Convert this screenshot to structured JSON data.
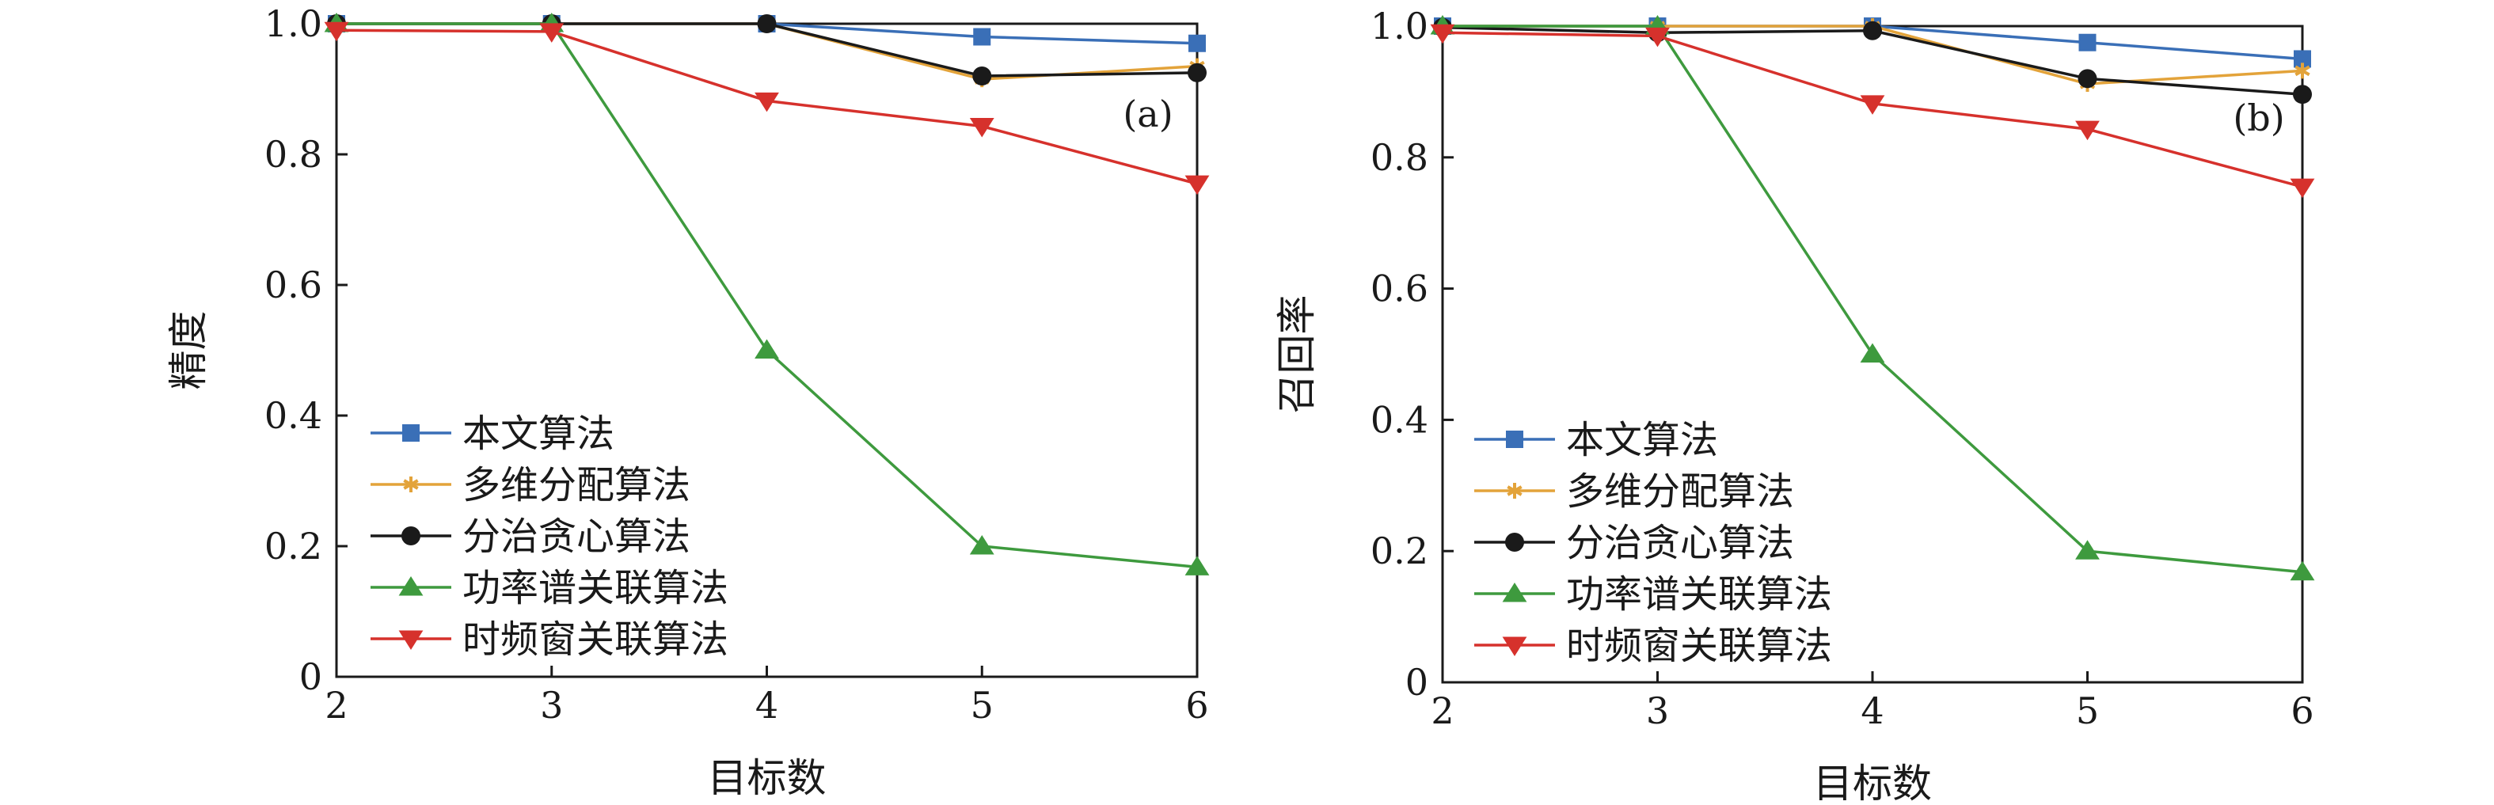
{
  "chart_data": [
    {
      "type": "line",
      "panel_label": "(a)",
      "xlabel": "目标数",
      "ylabel": "精度",
      "x": [
        2,
        3,
        4,
        5,
        6
      ],
      "xlim": [
        2,
        6
      ],
      "ylim": [
        0,
        1.0
      ],
      "x_ticks": [
        "2",
        "3",
        "4",
        "5",
        "6"
      ],
      "y_ticks": [
        "0",
        "0.2",
        "0.4",
        "0.6",
        "0.8",
        "1.0"
      ],
      "grid": false,
      "legend_position": "bottom-left",
      "series": [
        {
          "name": "本文算法",
          "values": [
            1.0,
            1.0,
            1.0,
            0.98,
            0.97
          ],
          "color": "#3a6fb7",
          "marker": "square"
        },
        {
          "name": "多维分配算法",
          "values": [
            1.0,
            1.0,
            1.0,
            0.915,
            0.935
          ],
          "color": "#e3a33a",
          "marker": "star"
        },
        {
          "name": "分治贪心算法",
          "values": [
            1.0,
            1.0,
            1.0,
            0.92,
            0.925
          ],
          "color": "#1a1a1a",
          "marker": "circle"
        },
        {
          "name": "功率谱关联算法",
          "values": [
            1.0,
            1.0,
            0.5,
            0.2,
            0.168
          ],
          "color": "#3e9a3e",
          "marker": "triangle-up"
        },
        {
          "name": "时频窗关联算法",
          "values": [
            0.99,
            0.988,
            0.882,
            0.843,
            0.755
          ],
          "color": "#d6312c",
          "marker": "triangle-down"
        }
      ]
    },
    {
      "type": "line",
      "panel_label": "(b)",
      "xlabel": "目标数",
      "ylabel": "召回率",
      "x": [
        2,
        3,
        4,
        5,
        6
      ],
      "xlim": [
        2,
        6
      ],
      "ylim": [
        0,
        1.0
      ],
      "x_ticks": [
        "2",
        "3",
        "4",
        "5",
        "6"
      ],
      "y_ticks": [
        "0",
        "0.2",
        "0.4",
        "0.6",
        "0.8",
        "1.0"
      ],
      "grid": false,
      "legend_position": "bottom-left",
      "series": [
        {
          "name": "本文算法",
          "values": [
            1.0,
            1.0,
            1.0,
            0.975,
            0.95
          ],
          "color": "#3a6fb7",
          "marker": "square"
        },
        {
          "name": "多维分配算法",
          "values": [
            1.0,
            1.0,
            1.0,
            0.912,
            0.932
          ],
          "color": "#e3a33a",
          "marker": "star"
        },
        {
          "name": "分治贪心算法",
          "values": [
            0.998,
            0.99,
            0.993,
            0.92,
            0.896
          ],
          "color": "#1a1a1a",
          "marker": "circle"
        },
        {
          "name": "功率谱关联算法",
          "values": [
            1.0,
            1.0,
            0.5,
            0.2,
            0.168
          ],
          "color": "#3e9a3e",
          "marker": "triangle-up"
        },
        {
          "name": "时频窗关联算法",
          "values": [
            0.99,
            0.985,
            0.882,
            0.843,
            0.755
          ],
          "color": "#d6312c",
          "marker": "triangle-down"
        }
      ]
    }
  ]
}
